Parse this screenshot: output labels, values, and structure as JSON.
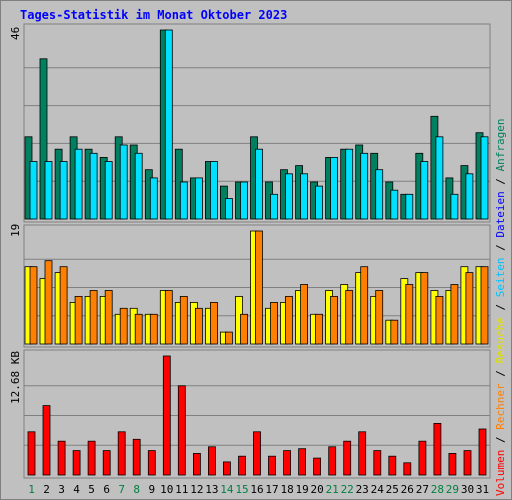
{
  "title": "Tages-Statistik im Monat Oktober 2023",
  "colors": {
    "anfragen": "#008060",
    "dateien": "#00e0ff",
    "seiten": "#00c0ff",
    "besuche": "#ffff00",
    "rechner": "#ff8000",
    "volumen": "#ff0000",
    "weekday": "#000000",
    "weekend": "#008040"
  },
  "right_label_parts": [
    {
      "text": "Volumen",
      "color": "#ff0000"
    },
    {
      "text": " / ",
      "color": "#000000"
    },
    {
      "text": "Rechner",
      "color": "#ff8000"
    },
    {
      "text": " / ",
      "color": "#000000"
    },
    {
      "text": "Besuche",
      "color": "#e0e000"
    },
    {
      "text": " / ",
      "color": "#000000"
    },
    {
      "text": "Seiten",
      "color": "#00c0ff"
    },
    {
      "text": " / ",
      "color": "#000000"
    },
    {
      "text": "Dateien",
      "color": "#0000ff"
    },
    {
      "text": " / ",
      "color": "#000000"
    },
    {
      "text": "Anfragen",
      "color": "#008060"
    }
  ],
  "chart_data": {
    "type": "bar",
    "title": "Tages-Statistik im Monat Oktober 2023",
    "categories": [
      "1",
      "2",
      "3",
      "4",
      "5",
      "6",
      "7",
      "8",
      "9",
      "10",
      "11",
      "12",
      "13",
      "14",
      "15",
      "16",
      "17",
      "18",
      "19",
      "20",
      "21",
      "22",
      "23",
      "24",
      "25",
      "26",
      "27",
      "28",
      "29",
      "30",
      "31"
    ],
    "weekend_days": [
      "1",
      "7",
      "8",
      "14",
      "15",
      "21",
      "22",
      "28",
      "29"
    ],
    "panels": [
      {
        "id": "top",
        "ymax_label": "46",
        "ymax": 46,
        "series": [
          {
            "name": "Anfragen",
            "values": [
              20,
              39,
              17,
              20,
              17,
              15,
              20,
              18,
              12,
              46,
              17,
              10,
              14,
              8,
              9,
              20,
              9,
              12,
              13,
              9,
              15,
              17,
              18,
              16,
              9,
              6,
              16,
              25,
              10,
              13,
              21
            ]
          },
          {
            "name": "Dateien",
            "values": [
              14,
              14,
              14,
              17,
              16,
              14,
              18,
              16,
              10,
              46,
              9,
              10,
              14,
              5,
              9,
              17,
              6,
              11,
              11,
              8,
              15,
              17,
              16,
              12,
              7,
              6,
              14,
              20,
              6,
              11,
              20
            ]
          }
        ]
      },
      {
        "id": "middle",
        "ymax_label": "19",
        "ymax": 19,
        "series": [
          {
            "name": "Besuche",
            "values": [
              13,
              11,
              12,
              7,
              8,
              8,
              5,
              6,
              5,
              9,
              7,
              7,
              6,
              2,
              8,
              19,
              6,
              7,
              9,
              5,
              9,
              10,
              12,
              8,
              4,
              11,
              12,
              9,
              9,
              13,
              13
            ]
          },
          {
            "name": "Rechner",
            "values": [
              13,
              14,
              13,
              8,
              9,
              9,
              6,
              5,
              5,
              9,
              8,
              6,
              7,
              2,
              5,
              19,
              7,
              8,
              10,
              5,
              8,
              9,
              13,
              9,
              4,
              10,
              12,
              8,
              10,
              12,
              13
            ]
          }
        ]
      },
      {
        "id": "bottom",
        "ymax_label": "12.68 KB",
        "ymax": 12.68,
        "series": [
          {
            "name": "Volumen",
            "values": [
              4.6,
              7.4,
              3.6,
              2.6,
              3.6,
              2.6,
              4.6,
              3.8,
              2.6,
              12.68,
              9.5,
              2.3,
              3.0,
              1.4,
              2.0,
              4.6,
              2.0,
              2.6,
              2.8,
              1.8,
              3.0,
              3.6,
              4.6,
              2.6,
              2.0,
              1.3,
              3.6,
              5.5,
              2.3,
              2.6,
              4.9
            ]
          }
        ]
      }
    ]
  }
}
